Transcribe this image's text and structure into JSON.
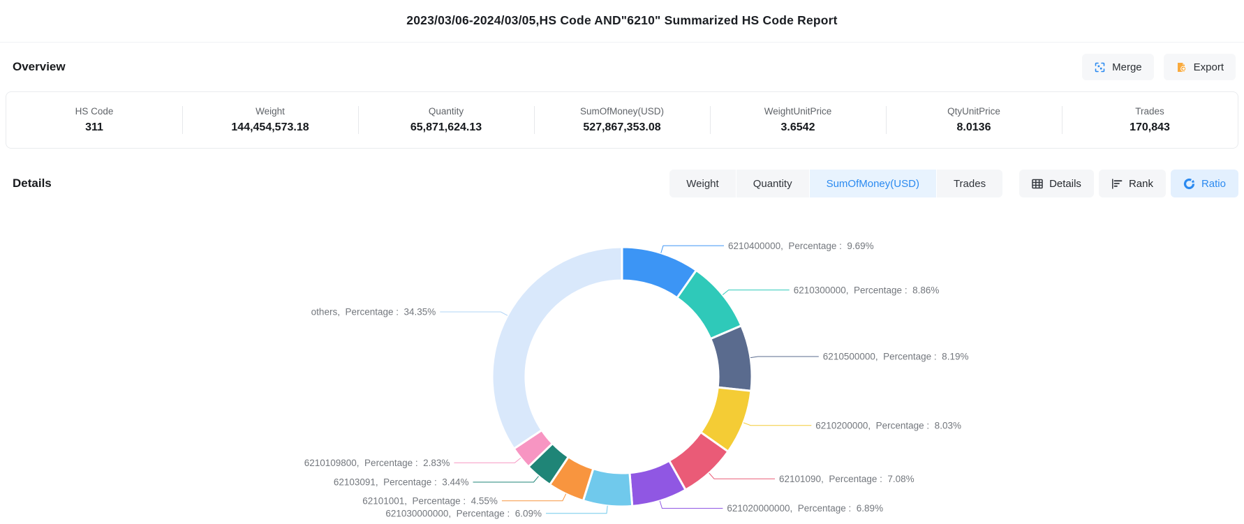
{
  "page": {
    "title": "2023/03/06-2024/03/05,HS Code AND\"6210\" Summarized HS Code Report"
  },
  "overview": {
    "heading": "Overview",
    "actions": {
      "merge_label": "Merge",
      "export_label": "Export"
    },
    "stats": [
      {
        "label": "HS Code",
        "value": "311"
      },
      {
        "label": "Weight",
        "value": "144,454,573.18"
      },
      {
        "label": "Quantity",
        "value": "65,871,624.13"
      },
      {
        "label": "SumOfMoney(USD)",
        "value": "527,867,353.08"
      },
      {
        "label": "WeightUnitPrice",
        "value": "3.6542"
      },
      {
        "label": "QtyUnitPrice",
        "value": "8.0136"
      },
      {
        "label": "Trades",
        "value": "170,843"
      }
    ]
  },
  "details": {
    "heading": "Details",
    "metric_tabs": [
      {
        "label": "Weight",
        "active": false
      },
      {
        "label": "Quantity",
        "active": false
      },
      {
        "label": "SumOfMoney(USD)",
        "active": true
      },
      {
        "label": "Trades",
        "active": false
      }
    ],
    "view_buttons": [
      {
        "label": "Details",
        "icon": "table-icon",
        "active": false
      },
      {
        "label": "Rank",
        "icon": "rank-bars-icon",
        "active": false
      },
      {
        "label": "Ratio",
        "icon": "donut-icon",
        "active": true
      }
    ]
  },
  "colors": {
    "accent_blue": "#2b8af0",
    "active_tab_bg": "#e8f3fe",
    "inactive_tab_bg": "#f5f6f8",
    "export_icon_orange": "#f9aa3d",
    "label_text": "#73777d"
  },
  "chart_data": {
    "type": "pie",
    "subtype": "donut",
    "title": "",
    "metric": "SumOfMoney(USD) ratio by HS Code",
    "label_keyword": "Percentage",
    "legend_position": "none",
    "items": [
      {
        "code": "6210400000",
        "percentage": 9.69,
        "color": "#3c95f5"
      },
      {
        "code": "6210300000",
        "percentage": 8.86,
        "color": "#2fc9b9"
      },
      {
        "code": "6210500000",
        "percentage": 8.19,
        "color": "#5a6b8e"
      },
      {
        "code": "6210200000",
        "percentage": 8.03,
        "color": "#f4cc35"
      },
      {
        "code": "62101090",
        "percentage": 7.08,
        "color": "#ea5b77"
      },
      {
        "code": "621020000000",
        "percentage": 6.89,
        "color": "#9057e3"
      },
      {
        "code": "621030000000",
        "percentage": 6.09,
        "color": "#70c9ec"
      },
      {
        "code": "62101001",
        "percentage": 4.55,
        "color": "#f8953f"
      },
      {
        "code": "62103091",
        "percentage": 3.44,
        "color": "#1f8577"
      },
      {
        "code": "6210109800",
        "percentage": 2.83,
        "color": "#f795c2"
      },
      {
        "code": "others",
        "percentage": 34.35,
        "color": "#d9e8fb",
        "line_color": "#b0d4f6"
      }
    ]
  }
}
